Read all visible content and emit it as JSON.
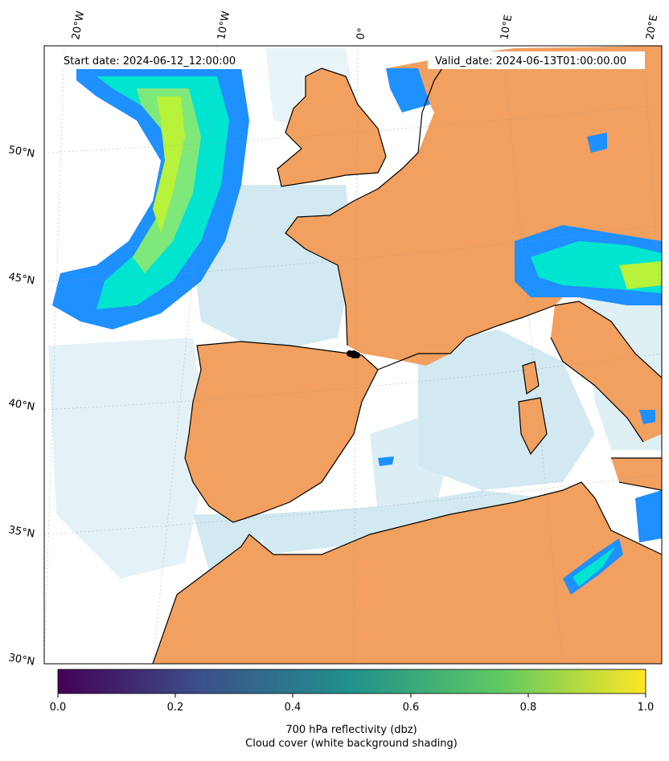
{
  "header": {
    "start_label": "Start date: 2024-06-12_12:00:00",
    "valid_label": "Valid_date: 2024-06-13T01:00:00.00"
  },
  "lon_labels": [
    "20°W",
    "10°W",
    "0°",
    "10°E",
    "20°E"
  ],
  "lat_labels": [
    "50°N",
    "45°N",
    "40°N",
    "35°N",
    "30°N"
  ],
  "colorbar": {
    "ticks": [
      "0.0",
      "0.2",
      "0.4",
      "0.6",
      "0.8",
      "1.0"
    ],
    "label_line1": "700 hPa reflectivity (dbz)",
    "label_line2": "Cloud cover (white background shading)",
    "colors": [
      "#440154",
      "#3b528b",
      "#21918c",
      "#5ec962",
      "#fde725"
    ]
  },
  "colors": {
    "land": "#f2a05f",
    "cloud": "#add8e6",
    "reflectivity_low": "#1e90ff",
    "reflectivity_mid": "#00e5d0",
    "reflectivity_high": "#b8f23a"
  }
}
